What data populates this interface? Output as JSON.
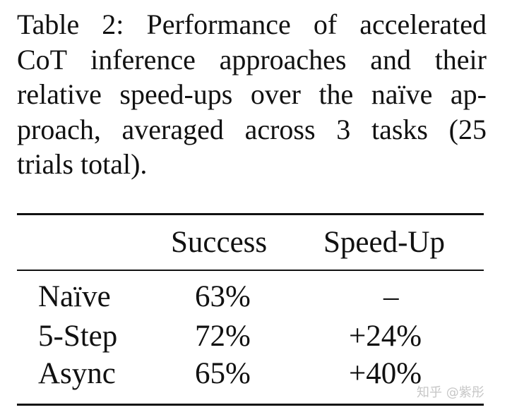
{
  "caption": {
    "label": "Table 2:",
    "lines": [
      "Performance of accelerated",
      "CoT inference approaches and their",
      "relative speed-ups over the naïve ap-",
      "proach, averaged across 3 tasks (25",
      "trials total)."
    ]
  },
  "table": {
    "headers": [
      "",
      "Success",
      "Speed-Up"
    ],
    "rows": [
      {
        "method": "Naïve",
        "success": "63%",
        "speedup": "–"
      },
      {
        "method": "5-Step",
        "success": "72%",
        "speedup": "+24%"
      },
      {
        "method": "Async",
        "success": "65%",
        "speedup": "+40%"
      }
    ]
  },
  "watermark": "知乎 @紫彤"
}
